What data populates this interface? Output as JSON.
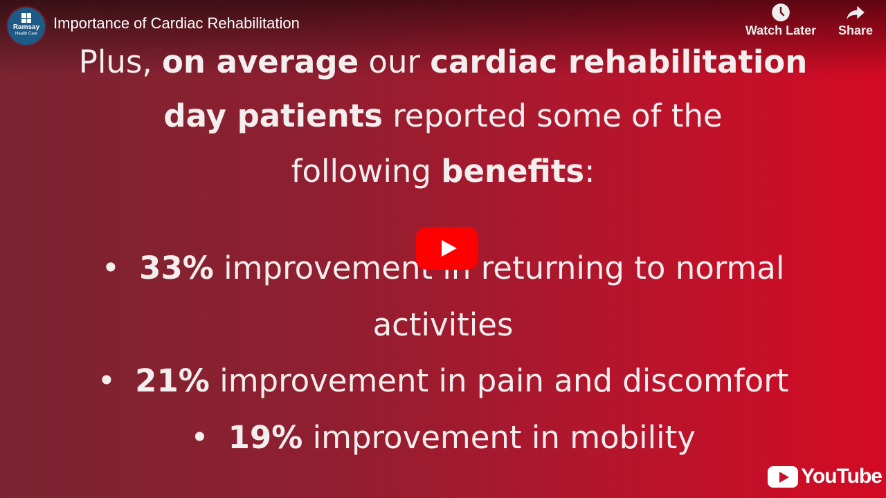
{
  "header": {
    "channel_logo": {
      "name": "Ramsay",
      "subtitle": "Health Care"
    },
    "title": "Importance of Cardiac Rehabilitation",
    "watch_later": {
      "label": "Watch Later",
      "icon": "clock-icon"
    },
    "share": {
      "label": "Share",
      "icon": "share-arrow-icon"
    }
  },
  "slide": {
    "lines": [
      [
        {
          "t": "Plus, ",
          "b": false
        },
        {
          "t": "on average",
          "b": true
        },
        {
          "t": " our ",
          "b": false
        },
        {
          "t": "cardiac rehabilitation",
          "b": true
        }
      ],
      [
        {
          "t": "day patients",
          "b": true
        },
        {
          "t": " reported some of the",
          "b": false
        }
      ],
      [
        {
          "t": "following ",
          "b": false
        },
        {
          "t": "benefits",
          "b": true
        },
        {
          "t": ":",
          "b": false
        }
      ],
      [
        {
          "t": "•",
          "b": false
        },
        {
          "t": "33%",
          "b": true
        },
        {
          "t": " improvement in returning to normal",
          "b": false
        }
      ],
      [
        {
          "t": "activities",
          "b": false
        }
      ],
      [
        {
          "t": "•",
          "b": false
        },
        {
          "t": "21%",
          "b": true
        },
        {
          "t": " improvement in pain and discomfort",
          "b": false
        }
      ],
      [
        {
          "t": "•",
          "b": false
        },
        {
          "t": "19%",
          "b": true
        },
        {
          "t": " improvement in mobility",
          "b": false
        }
      ]
    ]
  },
  "player": {
    "play_icon": "play-icon",
    "brand": "YouTube",
    "colors": {
      "play": "#ff0000",
      "bg_left": "#7b2431",
      "bg_right": "#d40a24"
    }
  }
}
